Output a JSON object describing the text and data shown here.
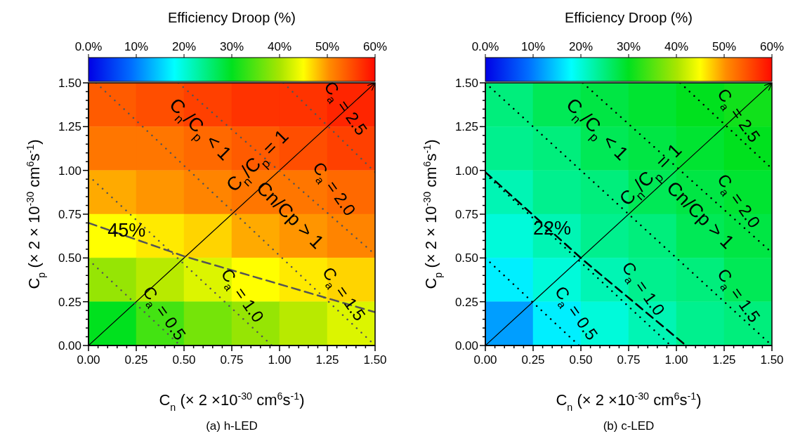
{
  "chart_data": [
    {
      "type": "heatmap",
      "title": "(a) h-LED",
      "clabel": "Efficiency Droop (%)",
      "xlabel": "C$_{n}$ (× 2 ×10$^{-30}$ cm$^{6}$s$^{-1}$)",
      "ylabel": "C$_{p}$ (× 2 × 10$^{-30}$ cm$^{6}$s$^{-1}$)",
      "cells": [
        [
          54,
          55,
          56,
          57,
          57,
          58
        ],
        [
          52,
          52,
          53,
          54,
          55,
          56
        ],
        [
          49,
          50,
          51,
          52,
          52,
          53
        ],
        [
          45,
          46,
          47,
          49,
          50,
          51
        ],
        [
          39,
          41,
          43,
          45,
          46,
          47
        ],
        [
          30,
          34,
          37,
          39,
          41,
          43
        ]
      ],
      "clim": [
        0,
        60
      ],
      "cticks": [
        {
          "value": 0,
          "label": "0.0%"
        },
        {
          "value": 10,
          "label": "10%"
        },
        {
          "value": 20,
          "label": "20%"
        },
        {
          "value": 30,
          "label": "30%"
        },
        {
          "value": 40,
          "label": "40%"
        },
        {
          "value": 50,
          "label": "50%"
        },
        {
          "value": 60,
          "label": "60%"
        }
      ],
      "xlim": [
        0,
        1.5
      ],
      "ylim": [
        0,
        1.5
      ],
      "xticks": [
        {
          "value": 0,
          "label": "0.00"
        },
        {
          "value": 0.05,
          "label": null
        },
        {
          "value": 0.1,
          "label": null
        },
        {
          "value": 0.15,
          "label": null
        },
        {
          "value": 0.2,
          "label": null
        },
        {
          "value": 0.25,
          "label": "0.25"
        },
        {
          "value": 0.3,
          "label": null
        },
        {
          "value": 0.35,
          "label": null
        },
        {
          "value": 0.4,
          "label": null
        },
        {
          "value": 0.45,
          "label": null
        },
        {
          "value": 0.5,
          "label": "0.50"
        },
        {
          "value": 0.55,
          "label": null
        },
        {
          "value": 0.6,
          "label": null
        },
        {
          "value": 0.65,
          "label": null
        },
        {
          "value": 0.7,
          "label": null
        },
        {
          "value": 0.75,
          "label": "0.75"
        },
        {
          "value": 0.8,
          "label": null
        },
        {
          "value": 0.85,
          "label": null
        },
        {
          "value": 0.9,
          "label": null
        },
        {
          "value": 0.95,
          "label": null
        },
        {
          "value": 1,
          "label": "1.00"
        },
        {
          "value": 1.05,
          "label": null
        },
        {
          "value": 1.1,
          "label": null
        },
        {
          "value": 1.15,
          "label": null
        },
        {
          "value": 1.2,
          "label": null
        },
        {
          "value": 1.25,
          "label": "1.25"
        },
        {
          "value": 1.3,
          "label": null
        },
        {
          "value": 1.35,
          "label": null
        },
        {
          "value": 1.4,
          "label": null
        },
        {
          "value": 1.45,
          "label": null
        },
        {
          "value": 1.5,
          "label": "1.50"
        }
      ],
      "yticks": [
        {
          "value": 0,
          "label": "0.00"
        },
        {
          "value": 0.05,
          "label": null
        },
        {
          "value": 0.1,
          "label": null
        },
        {
          "value": 0.15,
          "label": null
        },
        {
          "value": 0.2,
          "label": null
        },
        {
          "value": 0.25,
          "label": "0.25"
        },
        {
          "value": 0.3,
          "label": null
        },
        {
          "value": 0.35,
          "label": null
        },
        {
          "value": 0.4,
          "label": null
        },
        {
          "value": 0.45,
          "label": null
        },
        {
          "value": 0.5,
          "label": "0.50"
        },
        {
          "value": 0.55,
          "label": null
        },
        {
          "value": 0.6,
          "label": null
        },
        {
          "value": 0.65,
          "label": null
        },
        {
          "value": 0.7,
          "label": null
        },
        {
          "value": 0.75,
          "label": "0.75"
        },
        {
          "value": 0.8,
          "label": null
        },
        {
          "value": 0.85,
          "label": null
        },
        {
          "value": 0.9,
          "label": null
        },
        {
          "value": 0.95,
          "label": null
        },
        {
          "value": 1,
          "label": "1.00"
        },
        {
          "value": 1.05,
          "label": null
        },
        {
          "value": 1.1,
          "label": null
        },
        {
          "value": 1.15,
          "label": null
        },
        {
          "value": 1.2,
          "label": null
        },
        {
          "value": 1.25,
          "label": "1.25"
        },
        {
          "value": 1.3,
          "label": null
        },
        {
          "value": 1.35,
          "label": null
        },
        {
          "value": 1.4,
          "label": null
        },
        {
          "value": 1.45,
          "label": null
        },
        {
          "value": 1.5,
          "label": "1.50"
        }
      ],
      "series": [
        {
          "type": "line",
          "color": "#000000",
          "line_style": "solid",
          "x": [
            0,
            1.5
          ],
          "values": [
            0,
            1.5
          ]
        },
        {
          "type": "line",
          "color": "#555555",
          "line_style": "dotted",
          "x": [
            0,
            0.48
          ],
          "values": [
            0.49,
            0
          ]
        },
        {
          "type": "line",
          "color": "#555555",
          "line_style": "dotted",
          "x": [
            0,
            0.96
          ],
          "values": [
            0.97,
            0
          ]
        },
        {
          "type": "line",
          "color": "#555555",
          "line_style": "dotted",
          "x": [
            0.04,
            1.5
          ],
          "values": [
            1.5,
            0
          ]
        },
        {
          "type": "line",
          "color": "#555555",
          "line_style": "dotted",
          "x": [
            0.47,
            1.5
          ],
          "values": [
            1.5,
            0.52
          ]
        },
        {
          "type": "line",
          "color": "#555555",
          "line_style": "dotted",
          "x": [
            1.02,
            1.5
          ],
          "values": [
            1.5,
            0.99
          ]
        },
        {
          "type": "line",
          "color": "#555555",
          "line_style": "dashed",
          "x": [
            0,
            0.5,
            1,
            1.5
          ],
          "values": [
            0.7,
            0.51,
            0.35,
            0.19
          ]
        }
      ],
      "annotations": [
        "C$_{n}$/C$_{p}$ < 1",
        "C$_{n}$/C$_{p}$ = 1",
        "Cn/Cp > 1",
        "C$_{a}$ = 2.5",
        "C$_{a}$ = 2.0",
        "C$_{a}$ = 1.5",
        "C$_{a}$ = 1.0",
        "C$_{a}$ = 0.5",
        "45%"
      ],
      "legend": false,
      "grid": false,
      "marker": "none"
    },
    {
      "type": "heatmap",
      "title": "(b) c-LED",
      "clabel": "Efficiency Droop (%)",
      "xlabel": "C$_{n}$ (× 2 ×10$^{-30}$ cm$^{6}$s$^{-1}$)",
      "ylabel": "C$_{p}$ (× 2 × 10$^{-30}$ cm$^{6}$s$^{-1}$)",
      "cells": [
        [
          25,
          27,
          28,
          29,
          30,
          31
        ],
        [
          24,
          25,
          27,
          28,
          29,
          30
        ],
        [
          22,
          24,
          25,
          27,
          28,
          29
        ],
        [
          20,
          22,
          24,
          25,
          27,
          28
        ],
        [
          17,
          20,
          22,
          24,
          25,
          27
        ],
        [
          12,
          17,
          20,
          22,
          24,
          25
        ]
      ],
      "clim": [
        0,
        60
      ],
      "cticks": [
        {
          "value": 0,
          "label": "0.0%"
        },
        {
          "value": 10,
          "label": "10%"
        },
        {
          "value": 20,
          "label": "20%"
        },
        {
          "value": 30,
          "label": "30%"
        },
        {
          "value": 40,
          "label": "40%"
        },
        {
          "value": 50,
          "label": "50%"
        },
        {
          "value": 60,
          "label": "60%"
        }
      ],
      "xlim": [
        0,
        1.5
      ],
      "ylim": [
        0,
        1.5
      ],
      "xticks": [
        {
          "value": 0,
          "label": "0.00"
        },
        {
          "value": 0.05,
          "label": null
        },
        {
          "value": 0.1,
          "label": null
        },
        {
          "value": 0.15,
          "label": null
        },
        {
          "value": 0.2,
          "label": null
        },
        {
          "value": 0.25,
          "label": "0.25"
        },
        {
          "value": 0.3,
          "label": null
        },
        {
          "value": 0.35,
          "label": null
        },
        {
          "value": 0.4,
          "label": null
        },
        {
          "value": 0.45,
          "label": null
        },
        {
          "value": 0.5,
          "label": "0.50"
        },
        {
          "value": 0.55,
          "label": null
        },
        {
          "value": 0.6,
          "label": null
        },
        {
          "value": 0.65,
          "label": null
        },
        {
          "value": 0.7,
          "label": null
        },
        {
          "value": 0.75,
          "label": "0.75"
        },
        {
          "value": 0.8,
          "label": null
        },
        {
          "value": 0.85,
          "label": null
        },
        {
          "value": 0.9,
          "label": null
        },
        {
          "value": 0.95,
          "label": null
        },
        {
          "value": 1,
          "label": "1.00"
        },
        {
          "value": 1.05,
          "label": null
        },
        {
          "value": 1.1,
          "label": null
        },
        {
          "value": 1.15,
          "label": null
        },
        {
          "value": 1.2,
          "label": null
        },
        {
          "value": 1.25,
          "label": "1.25"
        },
        {
          "value": 1.3,
          "label": null
        },
        {
          "value": 1.35,
          "label": null
        },
        {
          "value": 1.4,
          "label": null
        },
        {
          "value": 1.45,
          "label": null
        },
        {
          "value": 1.5,
          "label": "1.50"
        }
      ],
      "yticks": [
        {
          "value": 0,
          "label": "0.00"
        },
        {
          "value": 0.05,
          "label": null
        },
        {
          "value": 0.1,
          "label": null
        },
        {
          "value": 0.15,
          "label": null
        },
        {
          "value": 0.2,
          "label": null
        },
        {
          "value": 0.25,
          "label": "0.25"
        },
        {
          "value": 0.3,
          "label": null
        },
        {
          "value": 0.35,
          "label": null
        },
        {
          "value": 0.4,
          "label": null
        },
        {
          "value": 0.45,
          "label": null
        },
        {
          "value": 0.5,
          "label": "0.50"
        },
        {
          "value": 0.55,
          "label": null
        },
        {
          "value": 0.6,
          "label": null
        },
        {
          "value": 0.65,
          "label": null
        },
        {
          "value": 0.7,
          "label": null
        },
        {
          "value": 0.75,
          "label": "0.75"
        },
        {
          "value": 0.8,
          "label": null
        },
        {
          "value": 0.85,
          "label": null
        },
        {
          "value": 0.9,
          "label": null
        },
        {
          "value": 0.95,
          "label": null
        },
        {
          "value": 1,
          "label": "1.00"
        },
        {
          "value": 1.05,
          "label": null
        },
        {
          "value": 1.1,
          "label": null
        },
        {
          "value": 1.15,
          "label": null
        },
        {
          "value": 1.2,
          "label": null
        },
        {
          "value": 1.25,
          "label": "1.25"
        },
        {
          "value": 1.3,
          "label": null
        },
        {
          "value": 1.35,
          "label": null
        },
        {
          "value": 1.4,
          "label": null
        },
        {
          "value": 1.45,
          "label": null
        },
        {
          "value": 1.5,
          "label": "1.50"
        }
      ],
      "series": [
        {
          "type": "line",
          "color": "#000000",
          "line_style": "solid",
          "x": [
            0,
            1.5
          ],
          "values": [
            0,
            1.5
          ]
        },
        {
          "type": "line",
          "color": "#000000",
          "line_style": "dotted",
          "x": [
            0,
            0.49
          ],
          "values": [
            0.5,
            0
          ]
        },
        {
          "type": "line",
          "color": "#000000",
          "line_style": "dotted",
          "x": [
            0,
            0.97
          ],
          "values": [
            0.98,
            0
          ]
        },
        {
          "type": "line",
          "color": "#000000",
          "line_style": "dotted",
          "x": [
            0,
            1.5
          ],
          "values": [
            1.5,
            0
          ]
        },
        {
          "type": "line",
          "color": "#000000",
          "line_style": "dotted",
          "x": [
            0.51,
            1.5
          ],
          "values": [
            1.5,
            0.53
          ]
        },
        {
          "type": "line",
          "color": "#000000",
          "line_style": "dotted",
          "x": [
            1.02,
            1.5
          ],
          "values": [
            1.5,
            1.01
          ]
        },
        {
          "type": "line",
          "color": "#000000",
          "line_style": "dashed",
          "x": [
            0,
            0.51,
            1.05
          ],
          "values": [
            0.99,
            0.49,
            0
          ]
        }
      ],
      "annotations": [
        "C$_{n}$/C$_{p}$ < 1",
        "C$_{n}$/C$_{p}$ = 1",
        "Cn/Cp > 1",
        "C$_{a}$ = 2.5",
        "C$_{a}$ = 2.0",
        "C$_{a}$ = 1.5",
        "C$_{a}$ = 1.0",
        "C$_{a}$ = 0.5",
        "22%"
      ],
      "legend": false,
      "grid": false,
      "marker": "none"
    }
  ]
}
